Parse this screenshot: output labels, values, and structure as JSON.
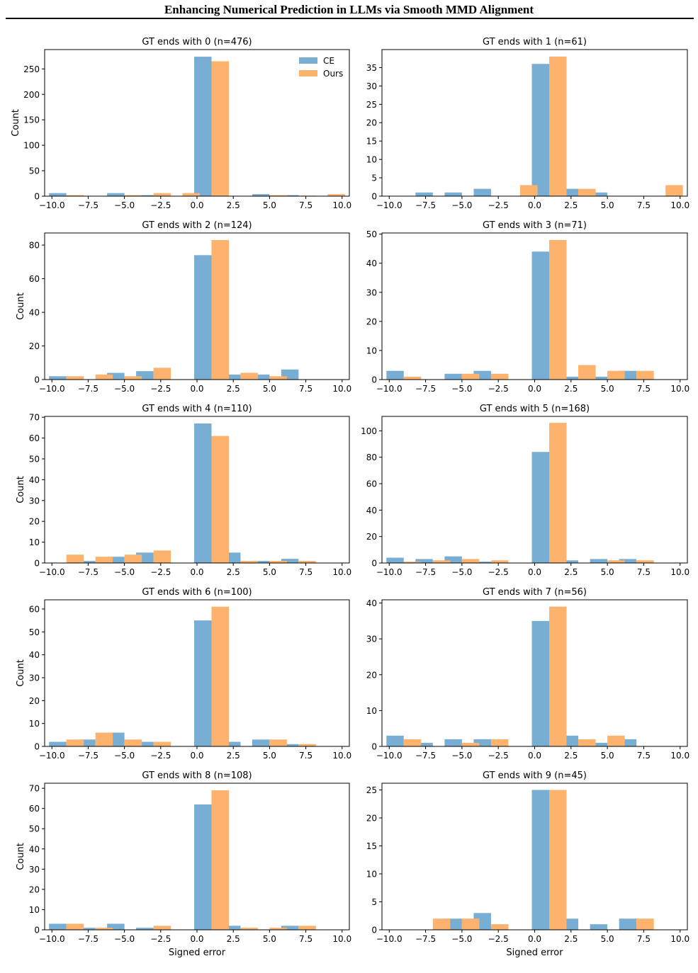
{
  "header": {
    "title": "Enhancing Numerical Prediction in LLMs via Smooth MMD Alignment"
  },
  "colors": {
    "ce": "#79aed4",
    "ours": "#fdb26d"
  },
  "legend": {
    "placement": "upper-right of first panel",
    "entries": [
      "CE",
      "Ours"
    ]
  },
  "xticks": [
    "−10.0",
    "−7.5",
    "−5.0",
    "−2.5",
    "0.0",
    "2.5",
    "5.0",
    "7.5",
    "10.0"
  ],
  "chart_data": [
    {
      "type": "bar",
      "title": "GT ends with 0 (n=476)",
      "ylabel": "Count",
      "xlabel": "",
      "xlim": [
        -10.5,
        10.5
      ],
      "ylim": [
        0,
        288
      ],
      "yticks": [
        0,
        50,
        100,
        150,
        200,
        250
      ],
      "bin_centers": [
        -9,
        -7,
        -5,
        -3,
        -1,
        1,
        3,
        5,
        7,
        9
      ],
      "series": [
        {
          "name": "CE",
          "values": [
            6,
            0,
            6,
            2,
            0,
            274,
            0,
            4,
            2,
            0
          ]
        },
        {
          "name": "Ours",
          "values": [
            2,
            0,
            2,
            6,
            6,
            265,
            0,
            2,
            1,
            4
          ]
        }
      ]
    },
    {
      "type": "bar",
      "title": "GT ends with 1 (n=61)",
      "ylabel": "",
      "xlabel": "",
      "xlim": [
        -10.5,
        10.5
      ],
      "ylim": [
        0,
        39.9
      ],
      "yticks": [
        0,
        5,
        10,
        15,
        20,
        25,
        30,
        35
      ],
      "bin_centers": [
        -9,
        -7,
        -5,
        -3,
        -1,
        1,
        3,
        5,
        7,
        9
      ],
      "series": [
        {
          "name": "CE",
          "values": [
            0,
            1,
            1,
            2,
            0,
            36,
            2,
            1,
            0,
            0
          ]
        },
        {
          "name": "Ours",
          "values": [
            0,
            0,
            0,
            0,
            3,
            38,
            2,
            0,
            0,
            3
          ]
        }
      ]
    },
    {
      "type": "bar",
      "title": "GT ends with 2 (n=124)",
      "ylabel": "Count",
      "xlabel": "",
      "xlim": [
        -10.5,
        10.5
      ],
      "ylim": [
        0,
        87.2
      ],
      "yticks": [
        0,
        20,
        40,
        60,
        80
      ],
      "bin_centers": [
        -9,
        -7,
        -5,
        -3,
        -1,
        1,
        3,
        5,
        7,
        9
      ],
      "series": [
        {
          "name": "CE",
          "values": [
            2,
            0,
            4,
            5,
            0,
            74,
            3,
            3,
            6,
            0
          ]
        },
        {
          "name": "Ours",
          "values": [
            2,
            3,
            2,
            7,
            0,
            83,
            4,
            2,
            0,
            0
          ]
        }
      ]
    },
    {
      "type": "bar",
      "title": "GT ends with 3 (n=71)",
      "ylabel": "",
      "xlabel": "",
      "xlim": [
        -10.5,
        10.5
      ],
      "ylim": [
        0,
        50.4
      ],
      "yticks": [
        0,
        10,
        20,
        30,
        40,
        50
      ],
      "bin_centers": [
        -9,
        -7,
        -5,
        -3,
        -1,
        1,
        3,
        5,
        7,
        9
      ],
      "series": [
        {
          "name": "CE",
          "values": [
            3,
            0,
            2,
            3,
            0,
            44,
            1,
            1,
            3,
            0
          ]
        },
        {
          "name": "Ours",
          "values": [
            1,
            0,
            2,
            2,
            0,
            48,
            5,
            3,
            3,
            0
          ]
        }
      ]
    },
    {
      "type": "bar",
      "title": "GT ends with 4 (n=110)",
      "ylabel": "Count",
      "xlabel": "",
      "xlim": [
        -10.5,
        10.5
      ],
      "ylim": [
        0,
        70.4
      ],
      "yticks": [
        0,
        10,
        20,
        30,
        40,
        50,
        60,
        70
      ],
      "bin_centers": [
        -9,
        -7,
        -5,
        -3,
        -1,
        1,
        3,
        5,
        7,
        9
      ],
      "series": [
        {
          "name": "CE",
          "values": [
            0,
            1,
            3,
            5,
            0,
            67,
            5,
            1,
            2,
            0
          ]
        },
        {
          "name": "Ours",
          "values": [
            4,
            3,
            4,
            6,
            0,
            61,
            1,
            1,
            1,
            0
          ]
        }
      ]
    },
    {
      "type": "bar",
      "title": "GT ends with 5 (n=168)",
      "ylabel": "",
      "xlabel": "",
      "xlim": [
        -10.5,
        10.5
      ],
      "ylim": [
        0,
        110.9
      ],
      "yticks": [
        0,
        20,
        40,
        60,
        80,
        100
      ],
      "bin_centers": [
        -9,
        -7,
        -5,
        -3,
        -1,
        1,
        3,
        5,
        7,
        9
      ],
      "series": [
        {
          "name": "CE",
          "values": [
            4,
            3,
            5,
            1,
            0,
            84,
            2,
            3,
            3,
            0
          ]
        },
        {
          "name": "Ours",
          "values": [
            1,
            2,
            3,
            2,
            0,
            106,
            0,
            2,
            2,
            0
          ]
        }
      ]
    },
    {
      "type": "bar",
      "title": "GT ends with 6 (n=100)",
      "ylabel": "Count",
      "xlabel": "",
      "xlim": [
        -10.5,
        10.5
      ],
      "ylim": [
        0,
        64
      ],
      "yticks": [
        0,
        10,
        20,
        30,
        40,
        50,
        60
      ],
      "bin_centers": [
        -9,
        -7,
        -5,
        -3,
        -1,
        1,
        3,
        5,
        7,
        9
      ],
      "series": [
        {
          "name": "CE",
          "values": [
            2,
            3,
            6,
            2,
            0,
            55,
            2,
            3,
            1,
            0
          ]
        },
        {
          "name": "Ours",
          "values": [
            3,
            6,
            3,
            2,
            0,
            61,
            0,
            3,
            1,
            0
          ]
        }
      ]
    },
    {
      "type": "bar",
      "title": "GT ends with 7 (n=56)",
      "ylabel": "",
      "xlabel": "",
      "xlim": [
        -10.5,
        10.5
      ],
      "ylim": [
        0,
        40.9
      ],
      "yticks": [
        0,
        10,
        20,
        30,
        40
      ],
      "bin_centers": [
        -9,
        -7,
        -5,
        -3,
        -1,
        1,
        3,
        5,
        7,
        9
      ],
      "series": [
        {
          "name": "CE",
          "values": [
            3,
            1,
            2,
            2,
            0,
            35,
            3,
            1,
            2,
            0
          ]
        },
        {
          "name": "Ours",
          "values": [
            2,
            0,
            1,
            2,
            0,
            39,
            2,
            3,
            0,
            0
          ]
        }
      ]
    },
    {
      "type": "bar",
      "title": "GT ends with 8 (n=108)",
      "ylabel": "Count",
      "xlabel": "Signed error",
      "xlim": [
        -10.5,
        10.5
      ],
      "ylim": [
        0,
        72.5
      ],
      "yticks": [
        0,
        10,
        20,
        30,
        40,
        50,
        60,
        70
      ],
      "bin_centers": [
        -9,
        -7,
        -5,
        -3,
        -1,
        1,
        3,
        5,
        7,
        9
      ],
      "series": [
        {
          "name": "CE",
          "values": [
            3,
            1,
            3,
            1,
            0,
            62,
            2,
            0,
            2,
            0
          ]
        },
        {
          "name": "Ours",
          "values": [
            3,
            1,
            0,
            2,
            0,
            69,
            1,
            1,
            2,
            0
          ]
        }
      ]
    },
    {
      "type": "bar",
      "title": "GT ends with 9 (n=45)",
      "ylabel": "",
      "xlabel": "Signed error",
      "xlim": [
        -10.5,
        10.5
      ],
      "ylim": [
        0,
        26.2
      ],
      "yticks": [
        0,
        5,
        10,
        15,
        20,
        25
      ],
      "bin_centers": [
        -9,
        -7,
        -5,
        -3,
        -1,
        1,
        3,
        5,
        7,
        9
      ],
      "series": [
        {
          "name": "CE",
          "values": [
            0,
            0,
            2,
            3,
            0,
            25,
            2,
            1,
            2,
            0
          ]
        },
        {
          "name": "Ours",
          "values": [
            0,
            2,
            2,
            1,
            0,
            25,
            0,
            0,
            2,
            0
          ]
        }
      ]
    }
  ]
}
